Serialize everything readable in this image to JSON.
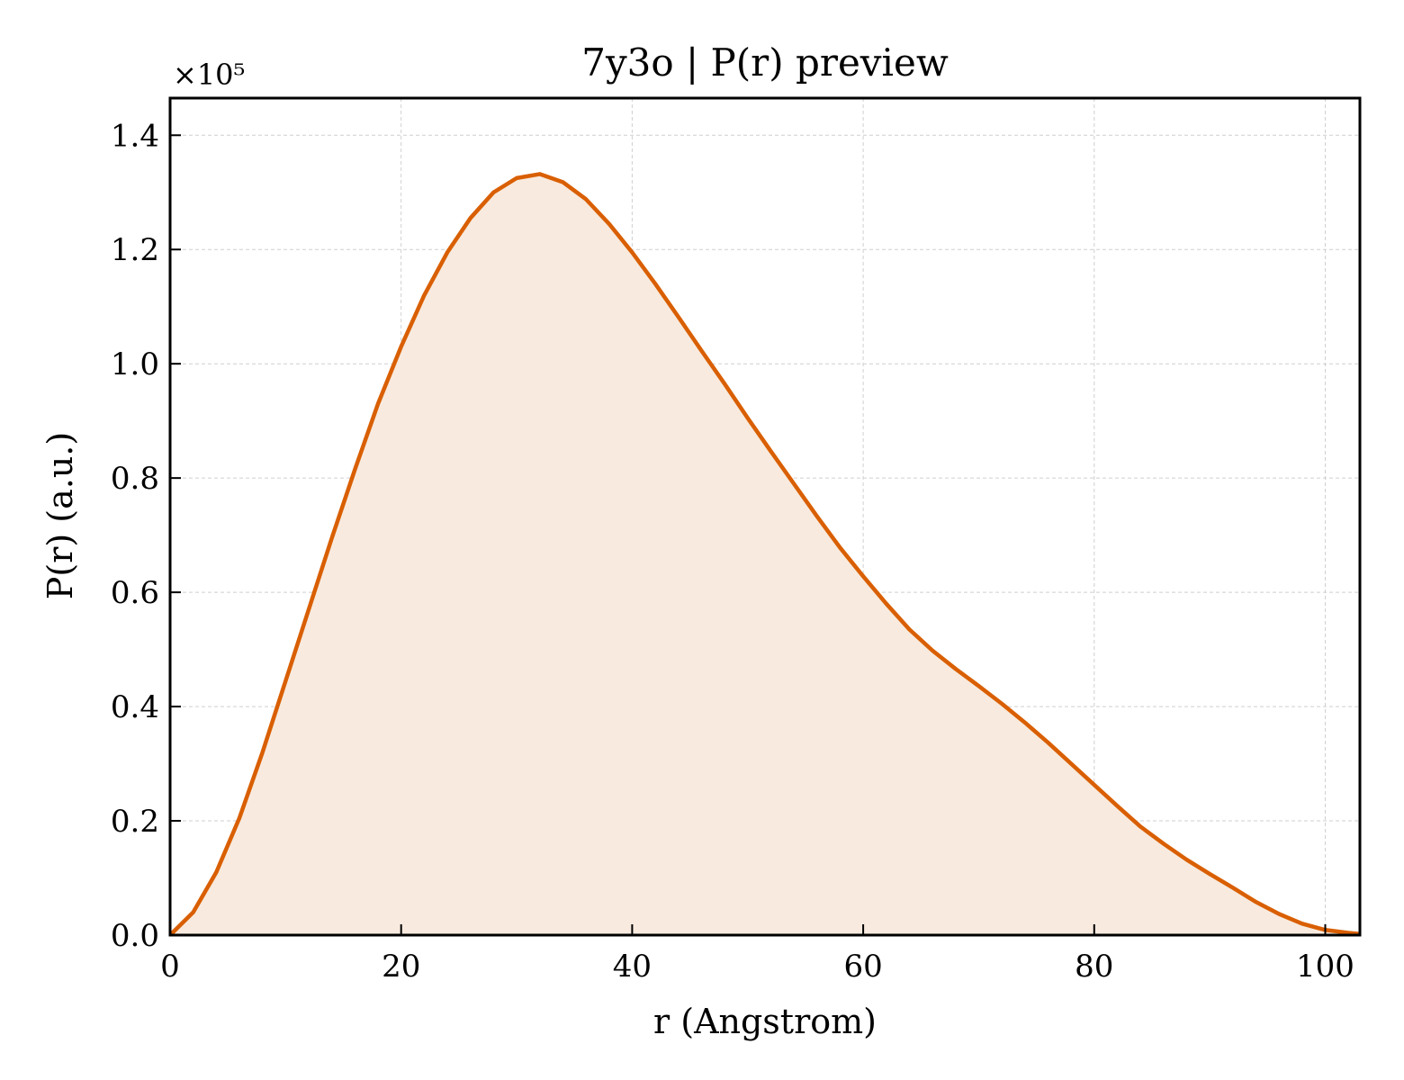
{
  "chart_data": {
    "type": "area",
    "title": "7y3o | P(r) preview",
    "xlabel": "r (Angstrom)",
    "ylabel": "P(r) (a.u.)",
    "y_multiplier": "×10⁵",
    "xlim": [
      0,
      103
    ],
    "ylim": [
      0,
      1.465
    ],
    "grid": true,
    "line_color": "#d95f02",
    "fill_color": "#f8eade",
    "x_ticks": [
      0,
      20,
      40,
      60,
      80,
      100
    ],
    "x_tick_labels": [
      "0",
      "20",
      "40",
      "60",
      "80",
      "100"
    ],
    "y_ticks": [
      0,
      0.2,
      0.4,
      0.6,
      0.8,
      1.0,
      1.2,
      1.4
    ],
    "y_tick_labels": [
      "0.0",
      "0.2",
      "0.4",
      "0.6",
      "0.8",
      "1.0",
      "1.2",
      "1.4"
    ],
    "series": [
      {
        "x": [
          0,
          2,
          4,
          6,
          8,
          10,
          12,
          14,
          16,
          18,
          20,
          22,
          24,
          26,
          28,
          30,
          32,
          34,
          36,
          38,
          40,
          42,
          44,
          46,
          48,
          50,
          52,
          54,
          56,
          58,
          60,
          62,
          64,
          66,
          68,
          70,
          72,
          74,
          76,
          78,
          80,
          82,
          84,
          86,
          88,
          90,
          92,
          94,
          96,
          98,
          100,
          102,
          103
        ],
        "y": [
          0.0,
          0.04,
          0.11,
          0.205,
          0.32,
          0.445,
          0.57,
          0.695,
          0.815,
          0.93,
          1.03,
          1.12,
          1.195,
          1.255,
          1.3,
          1.325,
          1.332,
          1.318,
          1.288,
          1.245,
          1.195,
          1.14,
          1.082,
          1.023,
          0.965,
          0.905,
          0.847,
          0.79,
          0.733,
          0.678,
          0.628,
          0.58,
          0.535,
          0.498,
          0.466,
          0.436,
          0.405,
          0.372,
          0.337,
          0.3,
          0.263,
          0.226,
          0.19,
          0.16,
          0.132,
          0.107,
          0.083,
          0.058,
          0.037,
          0.02,
          0.009,
          0.004,
          0.002
        ]
      }
    ]
  }
}
